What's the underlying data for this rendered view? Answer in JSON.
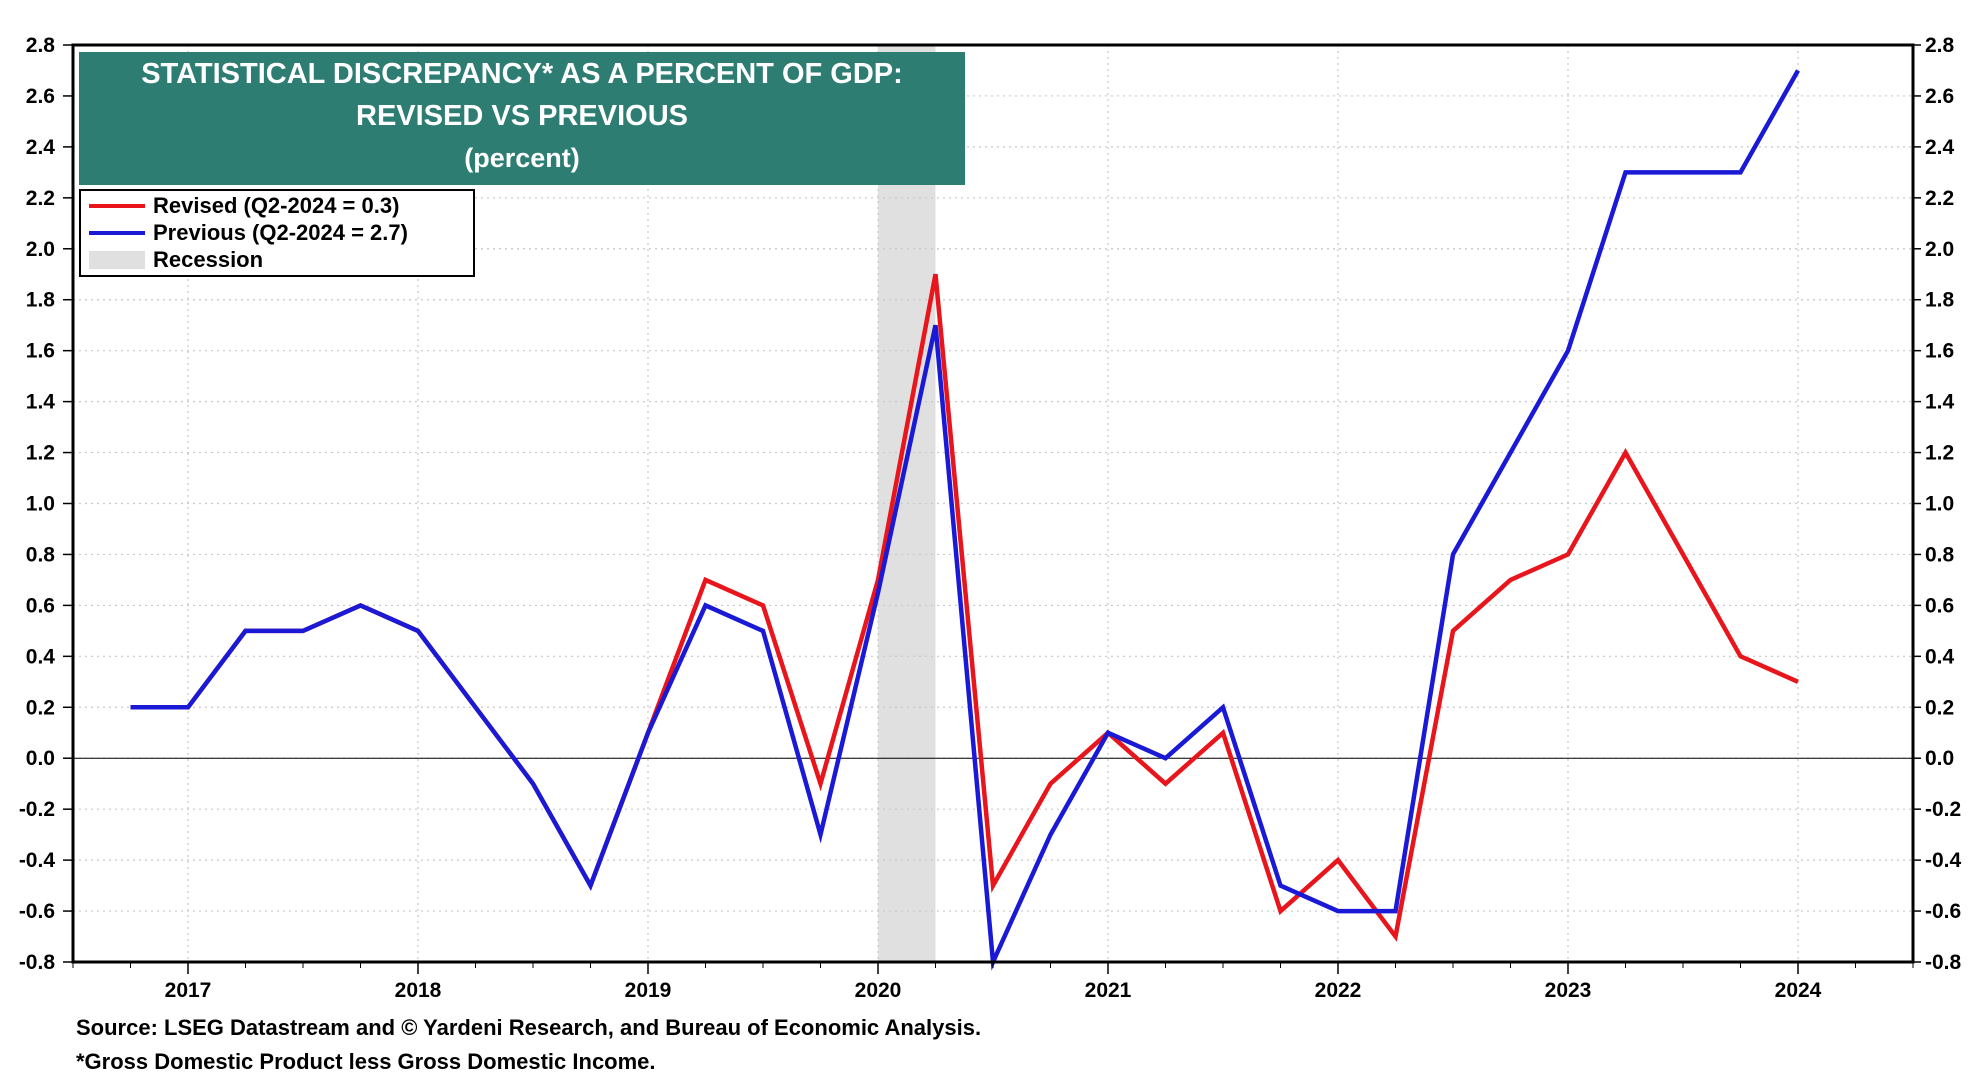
{
  "title": {
    "line1": "STATISTICAL DISCREPANCY* AS A PERCENT OF GDP:",
    "line2": "REVISED VS PREVIOUS",
    "line3": "(percent)"
  },
  "legend": {
    "revised": "Revised (Q2-2024 = 0.3)",
    "previous": "Previous (Q2-2024 = 2.7)",
    "recession": "Recession"
  },
  "footer": {
    "source": "Source: LSEG Datastream and © Yardeni Research, and Bureau of Economic Analysis.",
    "note": "*Gross Domestic Product less Gross Domestic Income."
  },
  "colors": {
    "revised": "#e8161c",
    "previous": "#1a1ad6",
    "recession": "#e0e0e0",
    "title_bg": "#2e7d72"
  },
  "chart_data": {
    "type": "line",
    "title": "STATISTICAL DISCREPANCY* AS A PERCENT OF GDP: REVISED VS PREVIOUS",
    "ylabel": "percent",
    "ylim": [
      -0.8,
      2.8
    ],
    "yticks": [
      "2.8",
      "2.6",
      "2.4",
      "2.2",
      "2.0",
      "1.8",
      "1.6",
      "1.4",
      "1.2",
      "1.0",
      "0.8",
      "0.6",
      "0.4",
      "0.2",
      "0.0",
      "-0.2",
      "-0.4",
      "-0.6",
      "-0.8"
    ],
    "xlim": [
      2016.5,
      2024.5
    ],
    "year_labels": [
      "2017",
      "2018",
      "2019",
      "2020",
      "2021",
      "2022",
      "2023",
      "2024"
    ],
    "recession": [
      2020.0,
      2020.25
    ],
    "x": [
      2016.75,
      2017.0,
      2017.25,
      2017.5,
      2017.75,
      2018.0,
      2018.25,
      2018.5,
      2018.75,
      2019.0,
      2019.25,
      2019.5,
      2019.75,
      2020.0,
      2020.25,
      2020.5,
      2020.75,
      2021.0,
      2021.25,
      2021.5,
      2021.75,
      2022.0,
      2022.25,
      2022.5,
      2022.75,
      2023.0,
      2023.25,
      2023.5,
      2023.75,
      2024.0
    ],
    "series": [
      {
        "name": "Previous",
        "color": "#1a1ad6",
        "values": [
          0.2,
          0.2,
          0.5,
          0.5,
          0.6,
          0.5,
          0.2,
          -0.1,
          -0.5,
          0.1,
          0.6,
          0.5,
          -0.3,
          0.65,
          1.7,
          -0.8,
          -0.3,
          0.1,
          0.0,
          0.2,
          -0.5,
          -0.6,
          -0.6,
          0.8,
          1.2,
          1.6,
          2.3,
          2.3,
          2.3,
          2.7
        ]
      },
      {
        "name": "Revised",
        "color": "#e8161c",
        "values": [
          0.2,
          0.2,
          0.5,
          0.5,
          0.6,
          0.5,
          0.2,
          -0.1,
          -0.5,
          0.1,
          0.7,
          0.6,
          -0.1,
          0.7,
          1.9,
          -0.5,
          -0.1,
          0.1,
          -0.1,
          0.1,
          -0.6,
          -0.4,
          -0.7,
          0.5,
          0.7,
          0.8,
          1.2,
          0.8,
          0.4,
          0.3
        ]
      }
    ]
  }
}
